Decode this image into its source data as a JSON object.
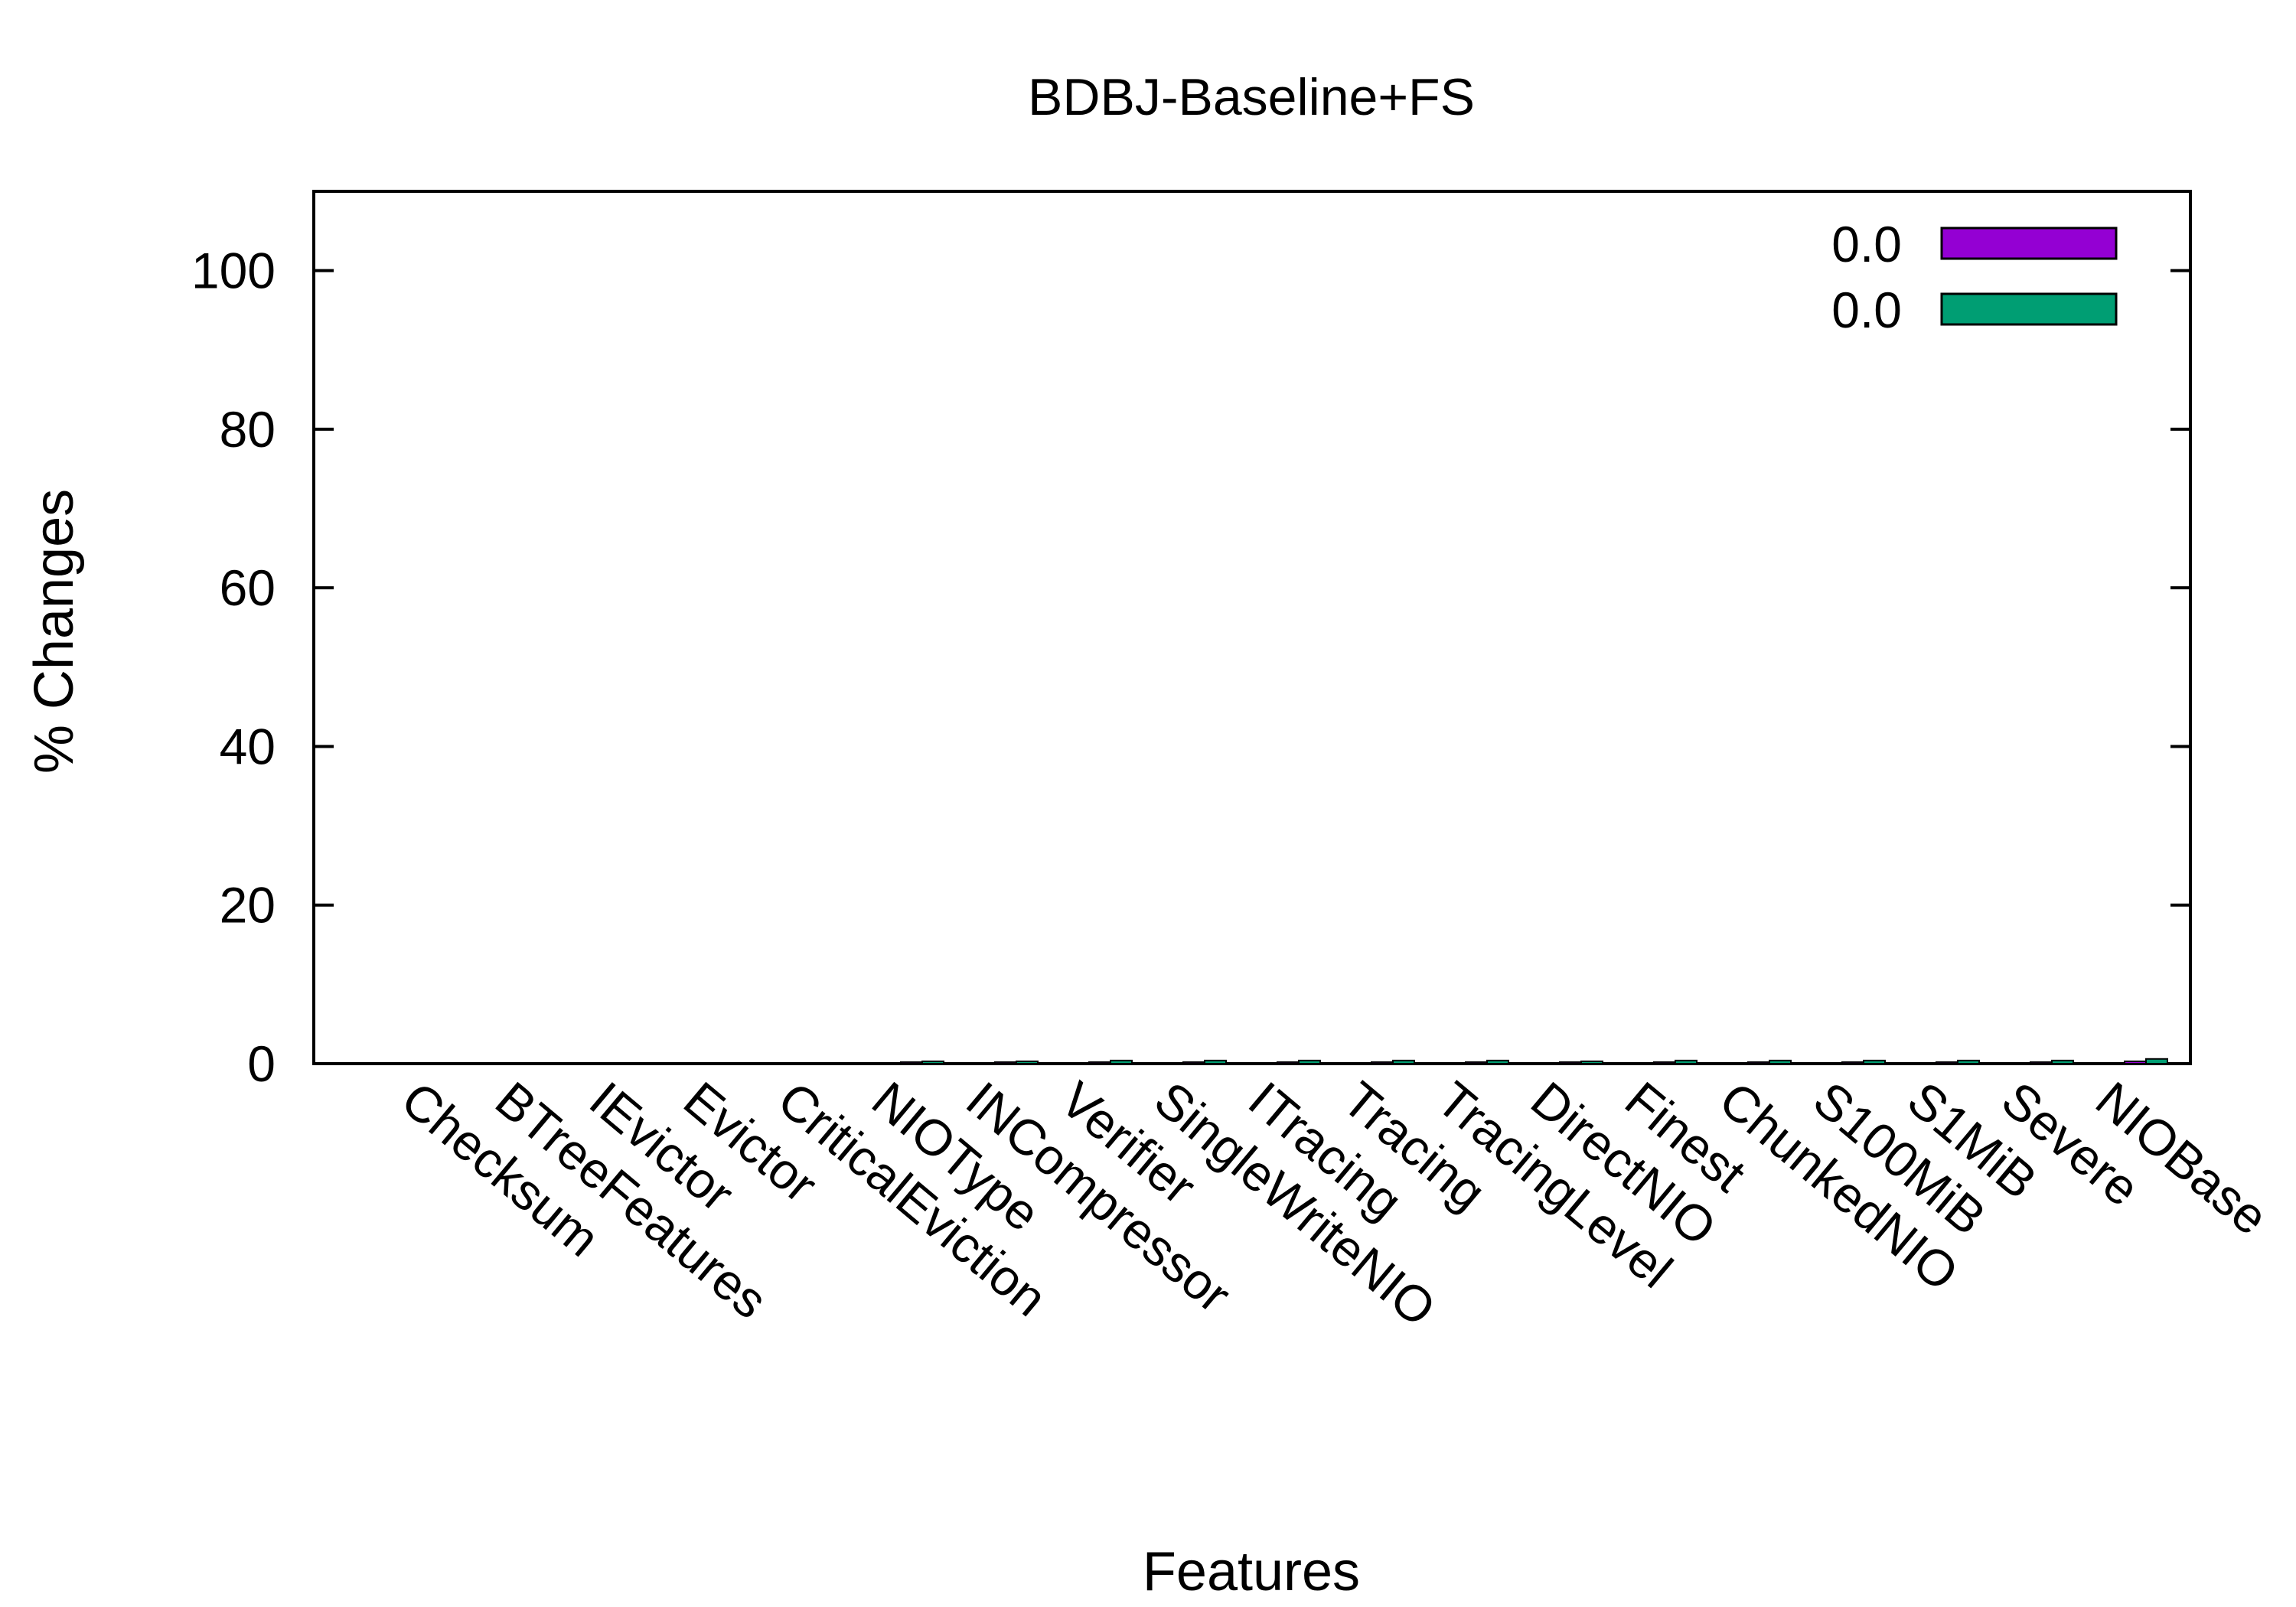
{
  "chart_data": {
    "type": "bar",
    "title": "BDBJ-Baseline+FS",
    "xlabel": "Features",
    "ylabel": "% Changes",
    "ylim": [
      0,
      110
    ],
    "yticks": [
      0,
      20,
      40,
      60,
      80,
      100
    ],
    "grid": false,
    "legend_position": "top-right",
    "categories": [
      "Checksum",
      "BTreeFeatures",
      "IEvictor",
      "Evictor",
      "CriticalEviction",
      "NIOType",
      "INCompressor",
      "Verifier",
      "SingleWriteNIO",
      "ITracing",
      "Tracing",
      "TracingLevel",
      "DirectNIO",
      "Finest",
      "ChunkedNIO",
      "S100MiB",
      "S1MiB",
      "Severe",
      "NIOBase"
    ],
    "series": [
      {
        "name": "0.0",
        "color": "#9400d3",
        "values": [
          0,
          0,
          0,
          0,
          0,
          0.2,
          0.2,
          0.2,
          0.2,
          0.2,
          0.2,
          0.2,
          0.2,
          0.2,
          0.2,
          0.2,
          0.2,
          0.2,
          0.3
        ]
      },
      {
        "name": "0.0",
        "color": "#009e73",
        "values": [
          0,
          0,
          0,
          0,
          0,
          0.3,
          0.3,
          0.4,
          0.4,
          0.4,
          0.4,
          0.4,
          0.3,
          0.4,
          0.4,
          0.4,
          0.4,
          0.4,
          0.6
        ]
      }
    ]
  }
}
